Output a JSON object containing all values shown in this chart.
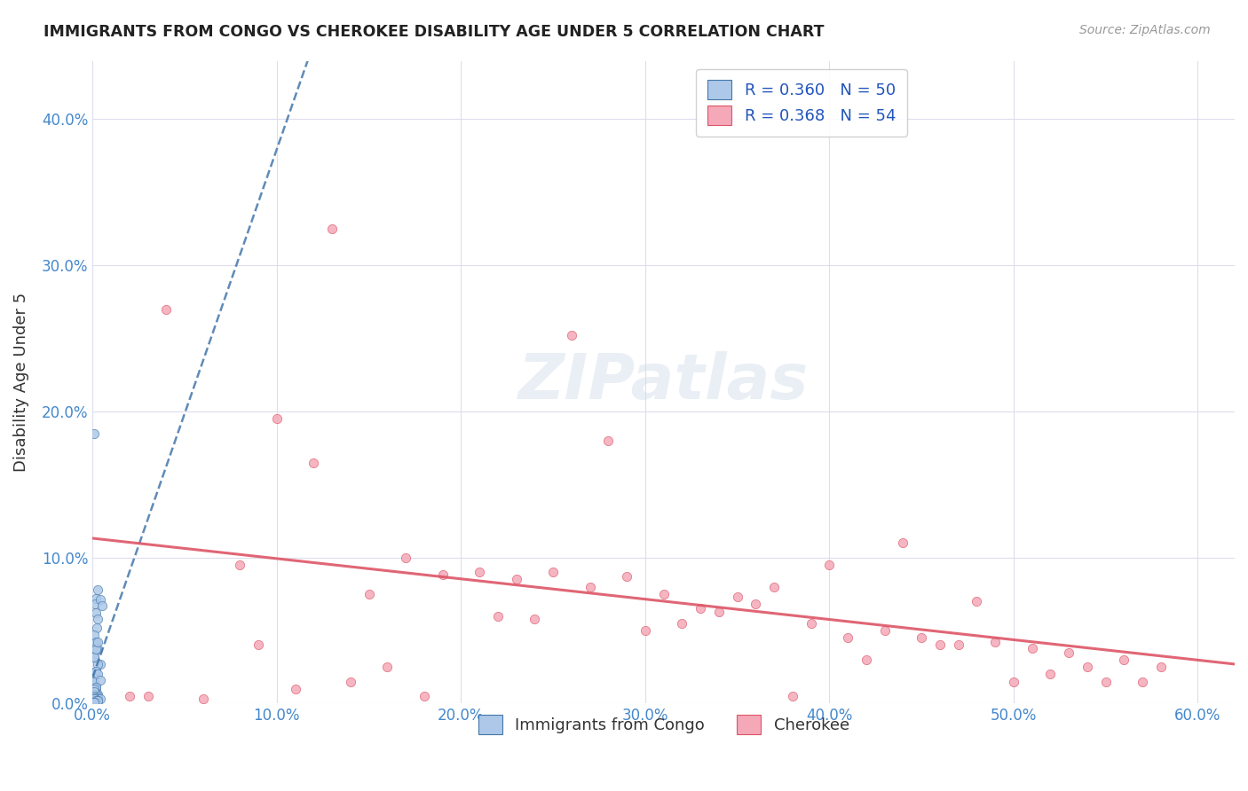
{
  "title": "IMMIGRANTS FROM CONGO VS CHEROKEE DISABILITY AGE UNDER 5 CORRELATION CHART",
  "source": "Source: ZipAtlas.com",
  "ylabel": "Disability Age Under 5",
  "xlim": [
    0.0,
    0.62
  ],
  "ylim": [
    0.0,
    0.44
  ],
  "xticks": [
    0.0,
    0.1,
    0.2,
    0.3,
    0.4,
    0.5,
    0.6
  ],
  "yticks": [
    0.0,
    0.1,
    0.2,
    0.3,
    0.4
  ],
  "xtick_labels": [
    "0.0%",
    "10.0%",
    "20.0%",
    "30.0%",
    "40.0%",
    "50.0%",
    "60.0%"
  ],
  "ytick_labels": [
    "0.0%",
    "10.0%",
    "20.0%",
    "30.0%",
    "40.0%"
  ],
  "color_blue": "#adc8e8",
  "color_pink": "#f4a8b8",
  "trendline_blue_color": "#4477aa",
  "trendline_pink_color": "#dd5566",
  "watermark": "ZIPatlas",
  "legend_entry1": "R = 0.360   N = 50",
  "legend_entry2": "R = 0.368   N = 54",
  "legend_label1": "Immigrants from Congo",
  "legend_label2": "Cherokee",
  "blue_scatter_x": [
    0.001,
    0.002,
    0.0015,
    0.003,
    0.002,
    0.004,
    0.003,
    0.0025,
    0.001,
    0.005,
    0.002,
    0.003,
    0.001,
    0.004,
    0.002,
    0.003,
    0.001,
    0.002,
    0.003,
    0.002,
    0.001,
    0.002,
    0.001,
    0.003,
    0.002,
    0.001,
    0.004,
    0.002,
    0.003,
    0.001,
    0.002,
    0.001,
    0.003,
    0.002,
    0.001,
    0.003,
    0.002,
    0.001,
    0.004,
    0.002,
    0.001,
    0.002,
    0.003,
    0.001,
    0.002,
    0.001,
    0.002,
    0.003,
    0.001,
    0.001
  ],
  "blue_scatter_y": [
    0.185,
    0.072,
    0.068,
    0.078,
    0.062,
    0.071,
    0.058,
    0.052,
    0.047,
    0.067,
    0.042,
    0.037,
    0.032,
    0.027,
    0.022,
    0.027,
    0.032,
    0.037,
    0.042,
    0.022,
    0.017,
    0.012,
    0.015,
    0.02,
    0.01,
    0.006,
    0.016,
    0.011,
    0.006,
    0.01,
    0.006,
    0.008,
    0.005,
    0.004,
    0.005,
    0.004,
    0.003,
    0.004,
    0.003,
    0.002,
    0.002,
    0.002,
    0.002,
    0.003,
    0.002,
    0.001,
    0.001,
    0.002,
    0.001,
    0.001
  ],
  "pink_scatter_x": [
    0.04,
    0.08,
    0.1,
    0.12,
    0.15,
    0.17,
    0.19,
    0.21,
    0.23,
    0.25,
    0.27,
    0.29,
    0.31,
    0.33,
    0.35,
    0.37,
    0.39,
    0.41,
    0.43,
    0.45,
    0.47,
    0.49,
    0.51,
    0.53,
    0.55,
    0.57,
    0.02,
    0.06,
    0.11,
    0.14,
    0.16,
    0.18,
    0.22,
    0.24,
    0.26,
    0.28,
    0.3,
    0.32,
    0.34,
    0.36,
    0.38,
    0.4,
    0.42,
    0.44,
    0.46,
    0.48,
    0.5,
    0.52,
    0.54,
    0.56,
    0.58,
    0.03,
    0.09,
    0.13
  ],
  "pink_scatter_y": [
    0.27,
    0.095,
    0.195,
    0.165,
    0.075,
    0.1,
    0.088,
    0.09,
    0.085,
    0.09,
    0.08,
    0.087,
    0.075,
    0.065,
    0.073,
    0.08,
    0.055,
    0.045,
    0.05,
    0.045,
    0.04,
    0.042,
    0.038,
    0.035,
    0.015,
    0.015,
    0.005,
    0.003,
    0.01,
    0.015,
    0.025,
    0.005,
    0.06,
    0.058,
    0.252,
    0.18,
    0.05,
    0.055,
    0.063,
    0.068,
    0.005,
    0.095,
    0.03,
    0.11,
    0.04,
    0.07,
    0.015,
    0.02,
    0.025,
    0.03,
    0.025,
    0.005,
    0.04,
    0.325
  ]
}
